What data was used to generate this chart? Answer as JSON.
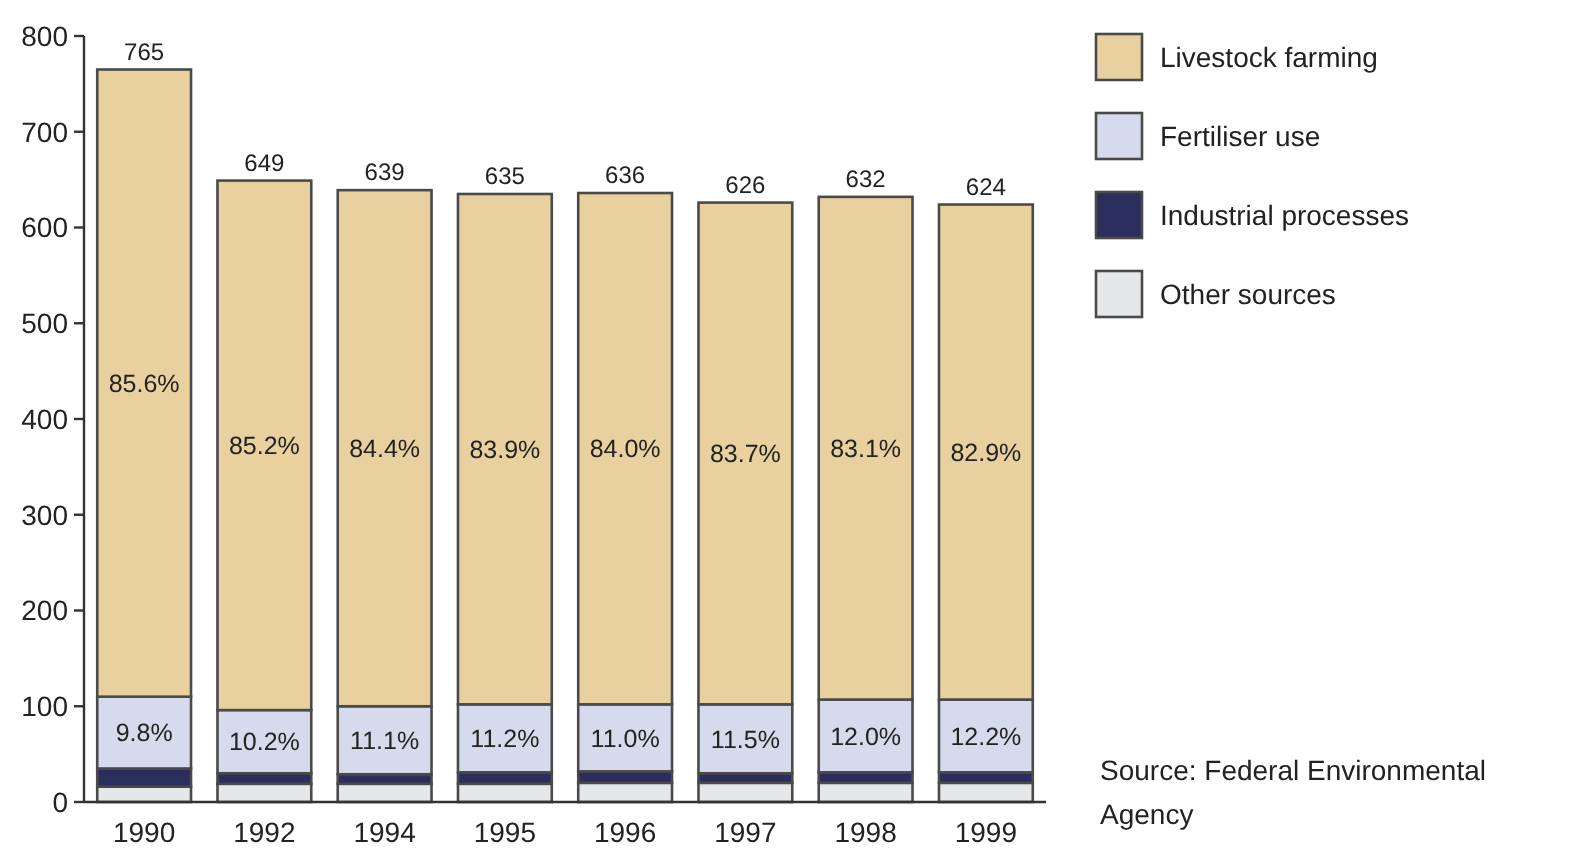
{
  "chart_data": {
    "type": "bar",
    "stacked": true,
    "categories": [
      "1990",
      "1992",
      "1994",
      "1995",
      "1996",
      "1997",
      "1998",
      "1999"
    ],
    "series": [
      {
        "name": "Other sources",
        "color": "#e6e7e9",
        "values": [
          16,
          19,
          19,
          19,
          20,
          20,
          20,
          20
        ]
      },
      {
        "name": "Industrial processes",
        "color": "#2b2d5c",
        "values": [
          19,
          11,
          10,
          12,
          12,
          10,
          11,
          11
        ]
      },
      {
        "name": "Fertiliser use",
        "color": "#d5dbec",
        "values": [
          75,
          66,
          71,
          71,
          70,
          72,
          76,
          76
        ]
      },
      {
        "name": "Livestock farming",
        "color": "#e8d19f",
        "values": [
          655,
          553,
          539,
          533,
          534,
          524,
          525,
          517
        ]
      }
    ],
    "totals": [
      "765",
      "649",
      "639",
      "635",
      "636",
      "626",
      "632",
      "624"
    ],
    "ylim": [
      0,
      800
    ],
    "yticks": [
      0,
      100,
      200,
      300,
      400,
      500,
      600,
      700,
      800
    ],
    "legend": "top right",
    "annotations": [
      "85.6%",
      "85.2%",
      "84.4%",
      "83.9%",
      "84.0%",
      "83.7%",
      "83.1%",
      "82.9%",
      "9.8%",
      "10.2%",
      "11.1%",
      "11.2%",
      "11.0%",
      "11.5%",
      "12.0%",
      "12.2%",
      "Source: Federal Environmental Agency"
    ]
  }
}
